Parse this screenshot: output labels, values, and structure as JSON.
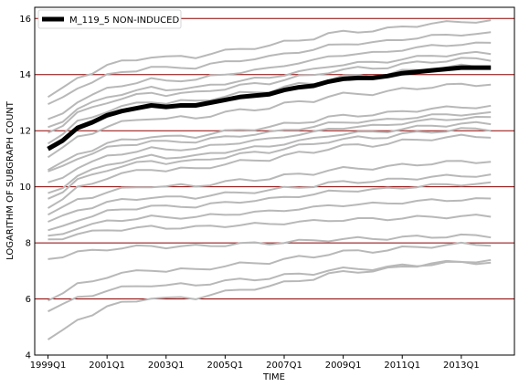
{
  "chart_data": {
    "type": "line",
    "title": "",
    "xlabel": "TIME",
    "ylabel": "LOGARITHM OF SUBGRAPH COUNT",
    "x_tick_labels": [
      "1999Q1",
      "2001Q1",
      "2003Q1",
      "2005Q1",
      "2007Q1",
      "2009Q1",
      "2011Q1",
      "2013Q1"
    ],
    "x_tick_years": [
      1999,
      2001,
      2003,
      2005,
      2007,
      2009,
      2011,
      2013
    ],
    "xlim": [
      1998.55,
      2014.8
    ],
    "ylim": [
      4,
      16.4
    ],
    "y_ticks": [
      4,
      6,
      8,
      10,
      12,
      14,
      16
    ],
    "grid": "horizontal",
    "legend_position": "top-left",
    "colors": {
      "highlight": "#000000",
      "background_series": "#b8b8b8",
      "gridline": "#8b0000",
      "axis": "#000000"
    },
    "highlight_series": {
      "name": "M_119_5 NON-INDUCED",
      "x": [
        1999.0,
        1999.5,
        2000.0,
        2000.5,
        2001.0,
        2001.5,
        2002.0,
        2002.5,
        2003.0,
        2003.5,
        2004.0,
        2004.5,
        2005.0,
        2005.5,
        2006.0,
        2006.5,
        2007.0,
        2007.5,
        2008.0,
        2008.5,
        2009.0,
        2009.5,
        2010.0,
        2010.5,
        2011.0,
        2011.5,
        2012.0,
        2012.5,
        2013.0,
        2013.5,
        2014.0
      ],
      "y": [
        11.35,
        11.65,
        12.1,
        12.3,
        12.55,
        12.7,
        12.8,
        12.9,
        12.85,
        12.9,
        12.9,
        13.0,
        13.1,
        13.2,
        13.25,
        13.3,
        13.45,
        13.55,
        13.6,
        13.75,
        13.85,
        13.88,
        13.88,
        13.95,
        14.05,
        14.1,
        14.15,
        14.2,
        14.25,
        14.25,
        14.25
      ]
    },
    "background_series": [
      {
        "start": 13.2,
        "end": 15.9
      },
      {
        "start": 12.9,
        "end": 15.45
      },
      {
        "start": 12.35,
        "end": 15.1
      },
      {
        "start": 12.1,
        "end": 14.75
      },
      {
        "start": 11.95,
        "end": 14.55
      },
      {
        "start": 11.6,
        "end": 14.3
      },
      {
        "start": 11.1,
        "end": 13.65
      },
      {
        "start": 10.6,
        "end": 12.85
      },
      {
        "start": 10.5,
        "end": 12.6
      },
      {
        "start": 10.1,
        "end": 12.45
      },
      {
        "start": 9.75,
        "end": 12.25
      },
      {
        "start": 9.6,
        "end": 12.05
      },
      {
        "start": 9.3,
        "end": 11.8
      },
      {
        "start": 9.05,
        "end": 10.9
      },
      {
        "start": 8.75,
        "end": 10.4
      },
      {
        "start": 8.4,
        "end": 10.1
      },
      {
        "start": 8.2,
        "end": 9.55
      },
      {
        "start": 8.1,
        "end": 8.95
      },
      {
        "start": 7.45,
        "end": 8.25
      },
      {
        "start": 6.0,
        "end": 7.95
      },
      {
        "start": 5.6,
        "end": 7.3
      },
      {
        "start": 4.55,
        "end": 7.35
      }
    ]
  }
}
